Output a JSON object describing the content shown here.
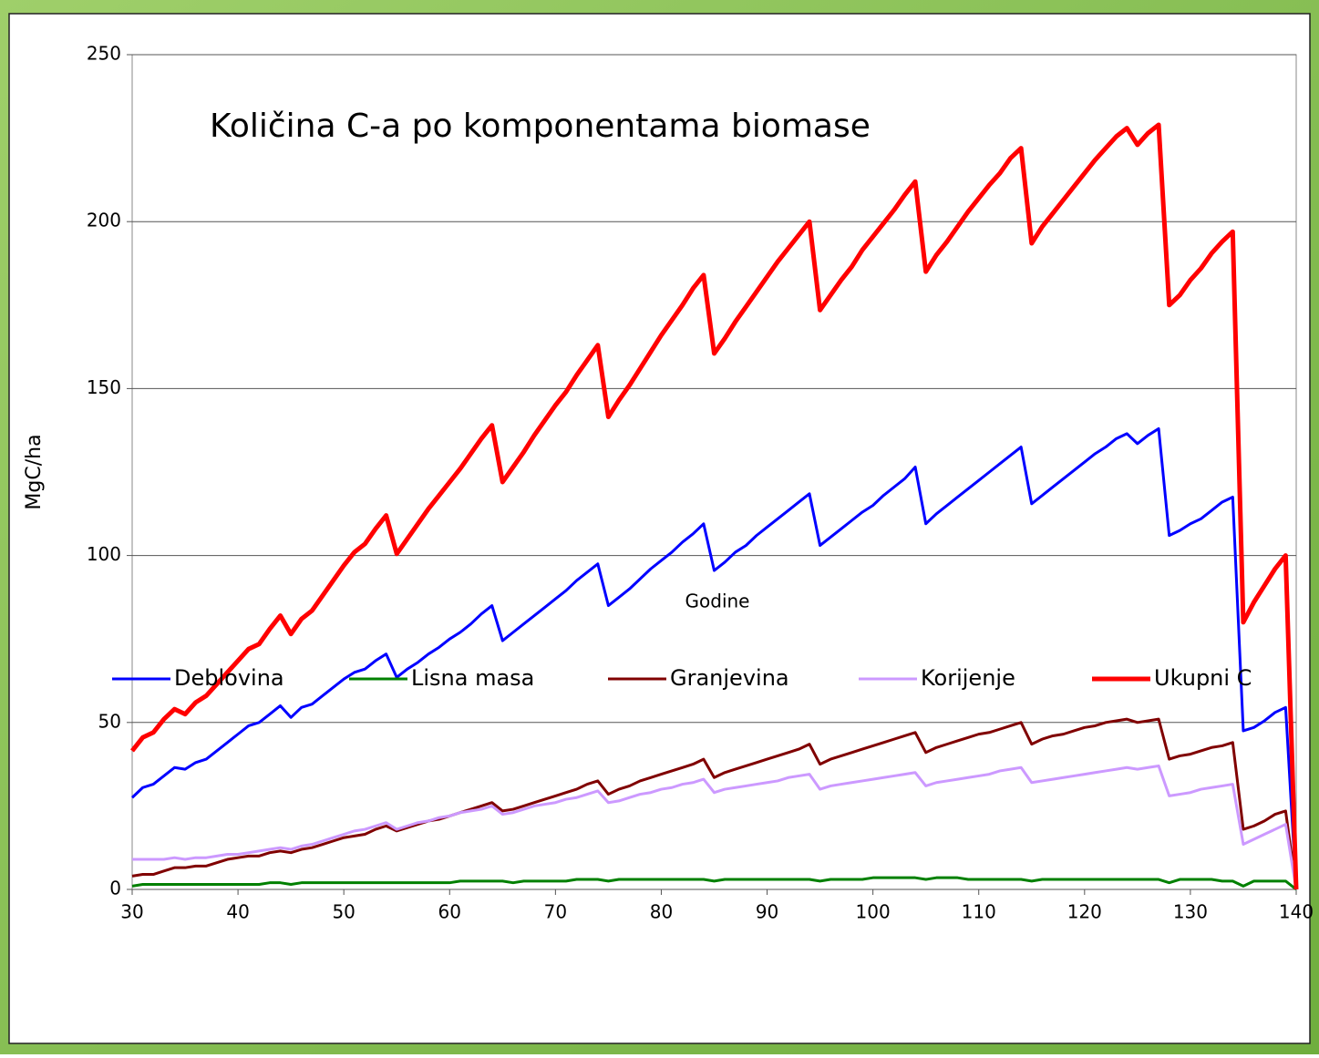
{
  "chart_data": {
    "type": "line",
    "title": "Količina C-a po komponentama biomase",
    "x_label": "Godine",
    "y_label": "MgC/ha",
    "x": [
      30,
      31,
      32,
      33,
      34,
      35,
      36,
      37,
      38,
      39,
      40,
      41,
      42,
      43,
      44,
      45,
      46,
      47,
      48,
      49,
      50,
      51,
      52,
      53,
      54,
      55,
      56,
      57,
      58,
      59,
      60,
      61,
      62,
      63,
      64,
      65,
      66,
      67,
      68,
      69,
      70,
      71,
      72,
      73,
      74,
      75,
      76,
      77,
      78,
      79,
      80,
      81,
      82,
      83,
      84,
      85,
      86,
      87,
      88,
      89,
      90,
      91,
      92,
      93,
      94,
      95,
      96,
      97,
      98,
      99,
      100,
      101,
      102,
      103,
      104,
      105,
      106,
      107,
      108,
      109,
      110,
      111,
      112,
      113,
      114,
      115,
      116,
      117,
      118,
      119,
      120,
      121,
      122,
      123,
      124,
      125,
      126,
      127,
      128,
      129,
      130,
      131,
      132,
      133,
      134,
      135,
      136,
      137,
      138,
      139,
      140
    ],
    "series": [
      {
        "name": "Deblovina",
        "color": "#0000ff",
        "values": [
          27.5,
          30.5,
          31.5,
          34,
          36.5,
          36,
          38,
          39,
          41.5,
          44,
          46.5,
          49,
          50,
          52.5,
          55,
          51.5,
          54.5,
          55.5,
          58,
          60.5,
          63,
          65,
          66,
          68.5,
          70.5,
          63.5,
          66,
          68,
          70.5,
          72.5,
          75,
          77,
          79.5,
          82.5,
          85,
          74.5,
          77,
          79.5,
          82,
          84.5,
          87,
          89.5,
          92.5,
          95,
          97.5,
          85,
          87.5,
          90,
          93,
          96,
          98.5,
          101,
          104,
          106.5,
          109.5,
          95.5,
          98,
          101,
          103,
          106,
          108.5,
          111,
          113.5,
          116,
          118.5,
          103,
          105.5,
          108,
          110.5,
          113,
          115,
          118,
          120.5,
          123,
          126.5,
          109.5,
          112.5,
          115,
          117.5,
          120,
          122.5,
          125,
          127.5,
          130,
          132.5,
          115.5,
          118,
          120.5,
          123,
          125.5,
          128,
          130.5,
          132.5,
          135,
          136.5,
          133.5,
          136,
          138,
          106,
          107.5,
          109.5,
          111,
          113.5,
          116,
          117.5,
          47.5,
          48.5,
          50.5,
          53,
          54.5,
          0
        ]
      },
      {
        "name": "Lisna masa",
        "color": "#008000",
        "values": [
          1,
          1.5,
          1.5,
          1.5,
          1.5,
          1.5,
          1.5,
          1.5,
          1.5,
          1.5,
          1.5,
          1.5,
          1.5,
          2,
          2,
          1.5,
          2,
          2,
          2,
          2,
          2,
          2,
          2,
          2,
          2,
          2,
          2,
          2,
          2,
          2,
          2,
          2.5,
          2.5,
          2.5,
          2.5,
          2.5,
          2,
          2.5,
          2.5,
          2.5,
          2.5,
          2.5,
          3,
          3,
          3,
          2.5,
          3,
          3,
          3,
          3,
          3,
          3,
          3,
          3,
          3,
          2.5,
          3,
          3,
          3,
          3,
          3,
          3,
          3,
          3,
          3,
          2.5,
          3,
          3,
          3,
          3,
          3.5,
          3.5,
          3.5,
          3.5,
          3.5,
          3,
          3.5,
          3.5,
          3.5,
          3,
          3,
          3,
          3,
          3,
          3,
          2.5,
          3,
          3,
          3,
          3,
          3,
          3,
          3,
          3,
          3,
          3,
          3,
          3,
          2,
          3,
          3,
          3,
          3,
          2.5,
          2.5,
          1,
          2.5,
          2.5,
          2.5,
          2.5,
          0
        ]
      },
      {
        "name": "Granjevina",
        "color": "#800000",
        "values": [
          4,
          4.5,
          4.5,
          5.5,
          6.5,
          6.5,
          7,
          7,
          8,
          9,
          9.5,
          10,
          10,
          11,
          11.5,
          11,
          12,
          12.5,
          13.5,
          14.5,
          15.5,
          16,
          16.5,
          18,
          19,
          17.5,
          18.5,
          19.5,
          20.5,
          21,
          22,
          23,
          24,
          25,
          26,
          23.5,
          24,
          25,
          26,
          27,
          28,
          29,
          30,
          31.5,
          32.5,
          28.5,
          30,
          31,
          32.5,
          33.5,
          34.5,
          35.5,
          36.5,
          37.5,
          39,
          33.5,
          35,
          36,
          37,
          38,
          39,
          40,
          41,
          42,
          43.5,
          37.5,
          39,
          40,
          41,
          42,
          43,
          44,
          45,
          46,
          47,
          41,
          42.5,
          43.5,
          44.5,
          45.5,
          46.5,
          47,
          48,
          49,
          50,
          43.5,
          45,
          46,
          46.5,
          47.5,
          48.5,
          49,
          50,
          50.5,
          51,
          50,
          50.5,
          51,
          39,
          40,
          40.5,
          41.5,
          42.5,
          43,
          44,
          18,
          19,
          20.5,
          22.5,
          23.5,
          0
        ]
      },
      {
        "name": "Korijenje",
        "color": "#cc99ff",
        "values": [
          9,
          9,
          9,
          9,
          9.5,
          9,
          9.5,
          9.5,
          10,
          10.5,
          10.5,
          11,
          11.5,
          12,
          12.5,
          12,
          13,
          13.5,
          14.5,
          15.5,
          16.5,
          17.5,
          18,
          19,
          20,
          18,
          19,
          20,
          20.5,
          21.5,
          22,
          23,
          23.5,
          24,
          25,
          22.5,
          23,
          24,
          25,
          25.5,
          26,
          27,
          27.5,
          28.5,
          29.5,
          26,
          26.5,
          27.5,
          28.5,
          29,
          30,
          30.5,
          31.5,
          32,
          33,
          29,
          30,
          30.5,
          31,
          31.5,
          32,
          32.5,
          33.5,
          34,
          34.5,
          30,
          31,
          31.5,
          32,
          32.5,
          33,
          33.5,
          34,
          34.5,
          35,
          31,
          32,
          32.5,
          33,
          33.5,
          34,
          34.5,
          35.5,
          36,
          36.5,
          32,
          32.5,
          33,
          33.5,
          34,
          34.5,
          35,
          35.5,
          36,
          36.5,
          36,
          36.5,
          37,
          28,
          28.5,
          29,
          30,
          30.5,
          31,
          31.5,
          13.5,
          15,
          16.5,
          18,
          19.5,
          0
        ]
      },
      {
        "name": "Ukupni C",
        "color": "#ff0000",
        "values": [
          41.5,
          45.5,
          47,
          51,
          54,
          52.5,
          56,
          58,
          61.5,
          65,
          68.5,
          72,
          73.5,
          78,
          82,
          76.5,
          81,
          83.5,
          88,
          92.5,
          97,
          101,
          103.5,
          108,
          112,
          100.5,
          105,
          109.5,
          114,
          118,
          122,
          126,
          130.5,
          135,
          139,
          122,
          126.5,
          131,
          136,
          140.5,
          145,
          149,
          154,
          158.5,
          163,
          141.5,
          146.5,
          151,
          156,
          161,
          166,
          170.5,
          175,
          180,
          184,
          160.5,
          165,
          170,
          174.5,
          179,
          183.5,
          188,
          192,
          196,
          200,
          173.5,
          178,
          182.5,
          186.5,
          191.5,
          195.5,
          199.5,
          203.5,
          208,
          212,
          185,
          190,
          194,
          198.5,
          203,
          207,
          211,
          214.5,
          219,
          222,
          193.5,
          198.5,
          202.5,
          206.5,
          210.5,
          214.5,
          218.5,
          222,
          225.5,
          228,
          223,
          226.5,
          229,
          175,
          178,
          182.5,
          186,
          190.5,
          194,
          197,
          80,
          86,
          91,
          96,
          100,
          0
        ]
      }
    ],
    "xlim": [
      30,
      140
    ],
    "xticks": [
      30,
      40,
      50,
      60,
      70,
      80,
      90,
      100,
      110,
      120,
      130,
      140
    ],
    "ylim": [
      0,
      250
    ],
    "yticks": [
      0,
      50,
      100,
      150,
      200,
      250
    ],
    "grid": true,
    "legend": "bottom"
  }
}
